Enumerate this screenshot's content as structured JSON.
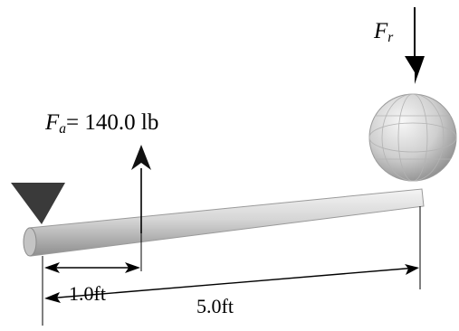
{
  "forces": {
    "reaction": {
      "symbol": "F",
      "subscript": "r"
    },
    "applied": {
      "symbol": "F",
      "subscript": "a",
      "equals": "= 140.0 lb"
    }
  },
  "dimensions": {
    "short": "1.0ft",
    "long": "5.0ft"
  },
  "colors": {
    "beam_light": "#f4f4f4",
    "beam_mid": "#c9c9c9",
    "beam_dark": "#8e8e8e",
    "support": "#3a3a3a",
    "sphere_light": "#f7f7f7",
    "sphere_dark": "#8a8a8a",
    "line": "#000000"
  }
}
